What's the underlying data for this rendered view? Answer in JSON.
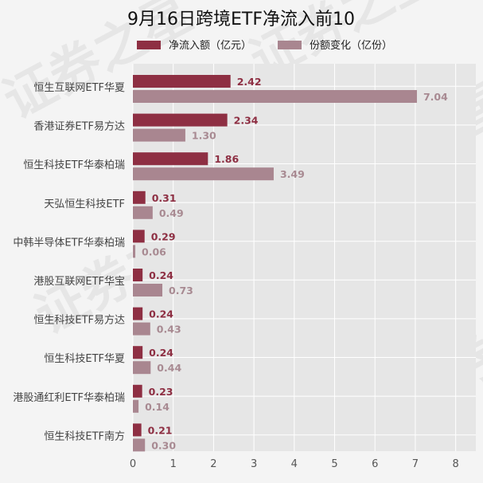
{
  "chart_data": {
    "type": "bar",
    "orientation": "horizontal",
    "title": "9月16日跨境ETF净流入前10",
    "categories": [
      "恒生互联网ETF华夏",
      "香港证券ETF易方达",
      "恒生科技ETF华泰柏瑞",
      "天弘恒生科技ETF",
      "中韩半导体ETF华泰柏瑞",
      "港股互联网ETF华宝",
      "恒生科技ETF易方达",
      "恒生科技ETF华夏",
      "港股通红利ETF华泰柏瑞",
      "恒生科技ETF南方"
    ],
    "series": [
      {
        "name": "净流入额（亿元）",
        "color": "#8e2f43",
        "values": [
          2.42,
          2.34,
          1.86,
          0.31,
          0.29,
          0.24,
          0.24,
          0.24,
          0.23,
          0.21
        ],
        "labels": [
          "2.42",
          "2.34",
          "1.86",
          "0.31",
          "0.29",
          "0.24",
          "0.24",
          "0.24",
          "0.23",
          "0.21"
        ]
      },
      {
        "name": "份额变化（亿份）",
        "color": "#a98690",
        "values": [
          7.04,
          1.3,
          3.49,
          0.49,
          0.06,
          0.73,
          0.43,
          0.44,
          0.14,
          0.3
        ],
        "labels": [
          "7.04",
          "1.30",
          "3.49",
          "0.49",
          "0.06",
          "0.73",
          "0.43",
          "0.44",
          "0.14",
          "0.30"
        ]
      }
    ],
    "xlim": [
      0,
      8.5
    ],
    "xticks": [
      "0",
      "1",
      "2",
      "3",
      "4",
      "5",
      "6",
      "7",
      "8"
    ],
    "grid": true,
    "legend_position": "top",
    "background": "#e6e6e6"
  },
  "watermark": "证券之星"
}
